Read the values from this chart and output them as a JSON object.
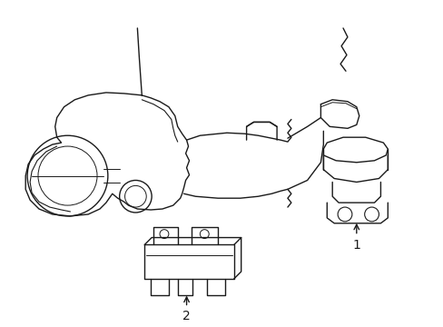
{
  "background_color": "#ffffff",
  "line_color": "#1a1a1a",
  "line_width": 1.0,
  "fig_width": 4.89,
  "fig_height": 3.6,
  "dpi": 100,
  "label1": "1",
  "label2": "2"
}
